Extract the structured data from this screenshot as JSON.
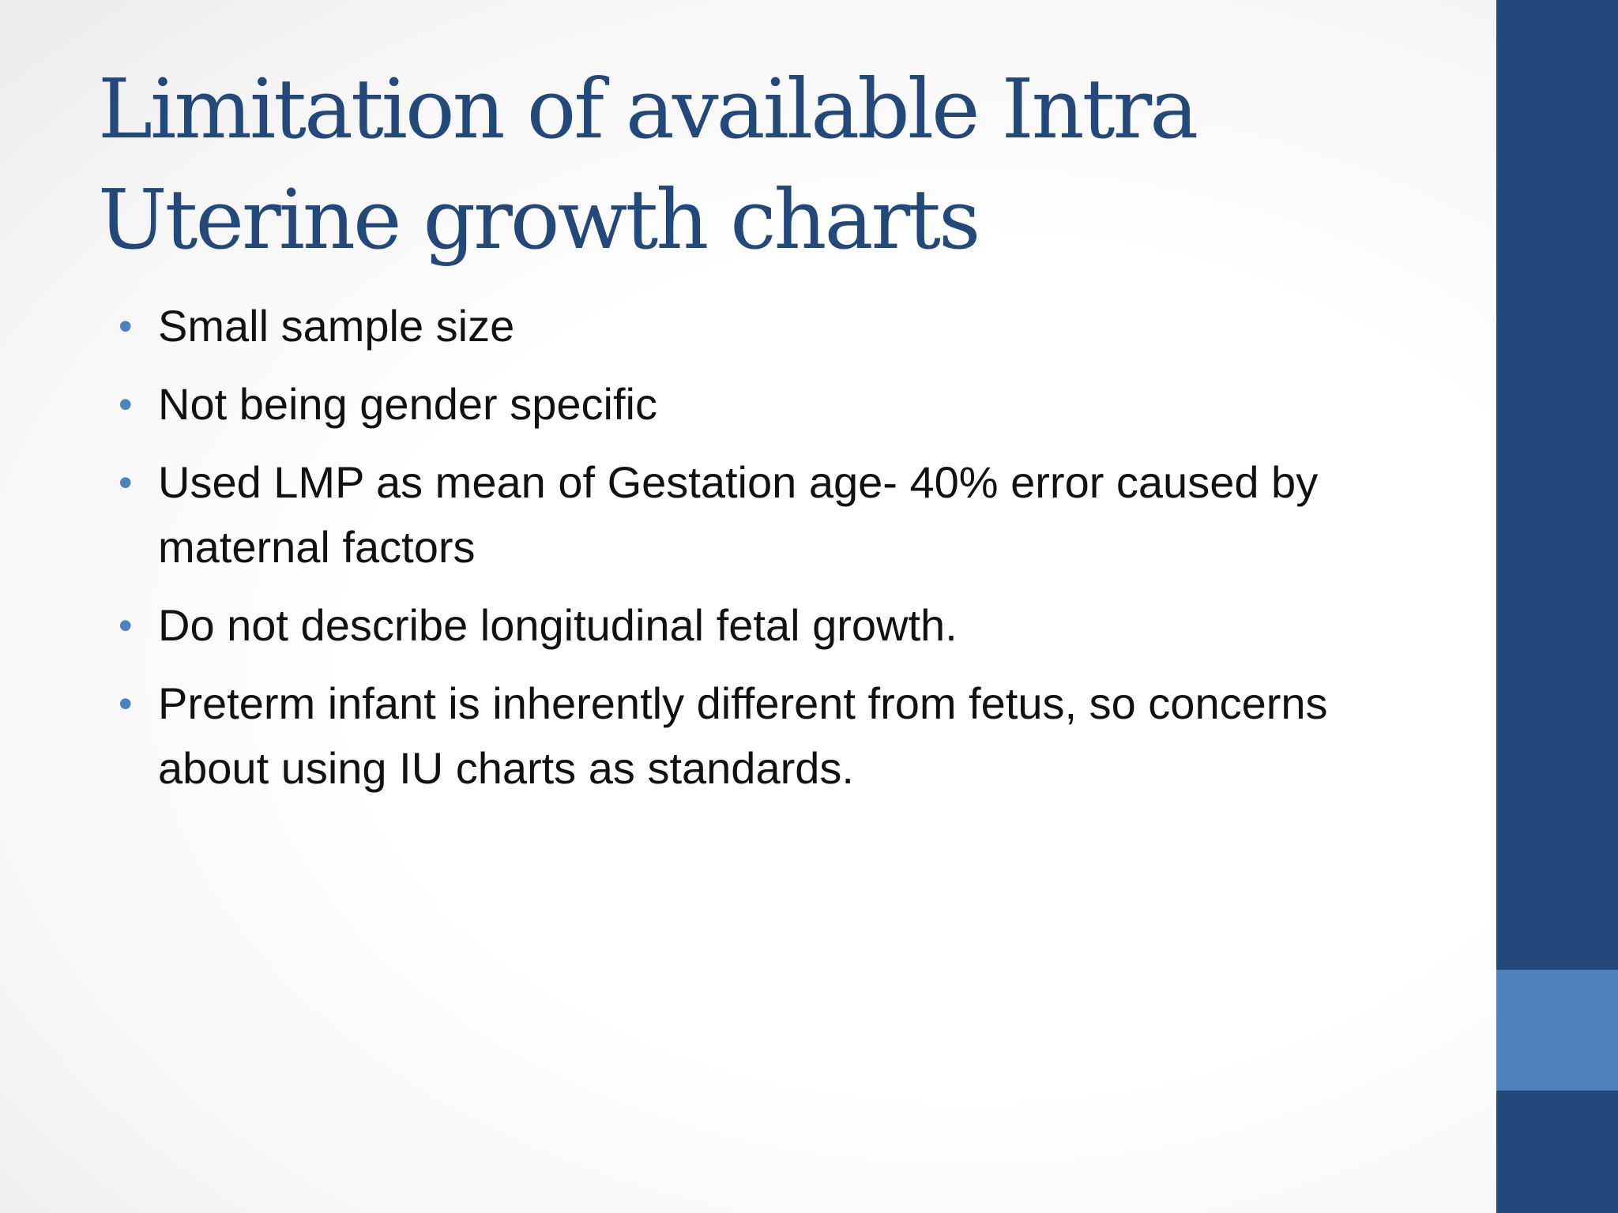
{
  "slide": {
    "title": "Limitation of available Intra Uterine growth charts",
    "bullet_symbol": "•",
    "bullets": [
      "Small sample size",
      "Not being gender specific",
      "Used LMP as mean of Gestation age- 40% error caused by maternal factors",
      "Do not describe longitudinal fetal growth.",
      "Preterm infant is inherently different from fetus, so concerns about using IU charts as standards."
    ]
  },
  "colors": {
    "title": "#23487a",
    "side_bar": "#23487a",
    "side_accent": "#4f81bd",
    "bullet_dot": "#4f81bd",
    "text": "#111111"
  }
}
